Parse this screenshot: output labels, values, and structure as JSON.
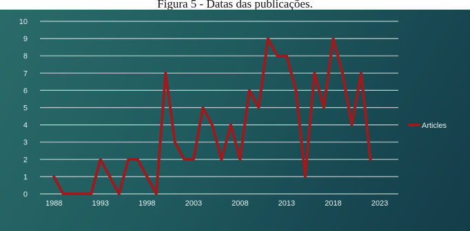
{
  "caption": "Figura 5 - Datas das publicações.",
  "chart_data": {
    "type": "line",
    "title": "",
    "xlabel": "",
    "ylabel": "",
    "ylim": [
      0,
      10
    ],
    "xlim": [
      1986.5,
      2025
    ],
    "x_ticks": [
      "1988",
      "1993",
      "1998",
      "2003",
      "2008",
      "2013",
      "2018",
      "2023"
    ],
    "y_ticks": [
      "0",
      "1",
      "2",
      "3",
      "4",
      "5",
      "6",
      "7",
      "8",
      "9",
      "10"
    ],
    "grid": true,
    "legend_position": "right",
    "series": [
      {
        "name": "Articles",
        "color": "#9b1b1e",
        "x": [
          1988,
          1989,
          1990,
          1991,
          1992,
          1993,
          1994,
          1995,
          1996,
          1997,
          1998,
          1999,
          2000,
          2001,
          2002,
          2003,
          2004,
          2005,
          2006,
          2007,
          2008,
          2009,
          2010,
          2011,
          2012,
          2013,
          2014,
          2015,
          2016,
          2017,
          2018,
          2019,
          2020,
          2021,
          2022
        ],
        "values": [
          1,
          0,
          0,
          0,
          0,
          2,
          1,
          0,
          2,
          2,
          1,
          0,
          7,
          3,
          2,
          2,
          5,
          4,
          2,
          4,
          2,
          6,
          5,
          9,
          8,
          8,
          6,
          1,
          7,
          5,
          9,
          7,
          4,
          7,
          2
        ]
      }
    ]
  }
}
